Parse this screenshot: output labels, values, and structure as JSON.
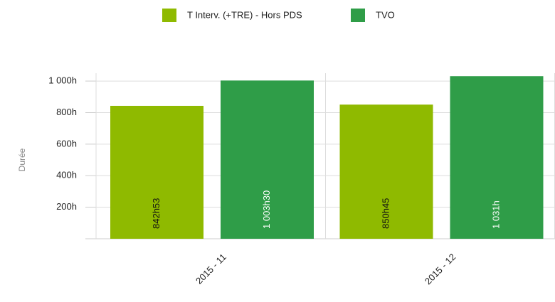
{
  "chart_data": {
    "type": "bar",
    "y_label": "Durée",
    "categories": [
      "2015 - 11",
      "2015 - 12"
    ],
    "series": [
      {
        "name": "T Interv. (+TRE) - Hors PDS",
        "color": "#8fba00",
        "values": [
          842.883,
          850.75
        ],
        "value_labels": [
          "842h53",
          "850h45"
        ]
      },
      {
        "name": "TVO",
        "color": "#2f9d48",
        "values": [
          1003.5,
          1031
        ],
        "value_labels": [
          "1 003h30",
          "1 031h"
        ]
      }
    ],
    "ylim": [
      0,
      1050
    ],
    "yticks": [
      {
        "value": 200,
        "label": "200h"
      },
      {
        "value": 400,
        "label": "400h"
      },
      {
        "value": 600,
        "label": "600h"
      },
      {
        "value": 800,
        "label": "800h"
      },
      {
        "value": 1000,
        "label": "1 000h"
      }
    ],
    "grid": true
  }
}
